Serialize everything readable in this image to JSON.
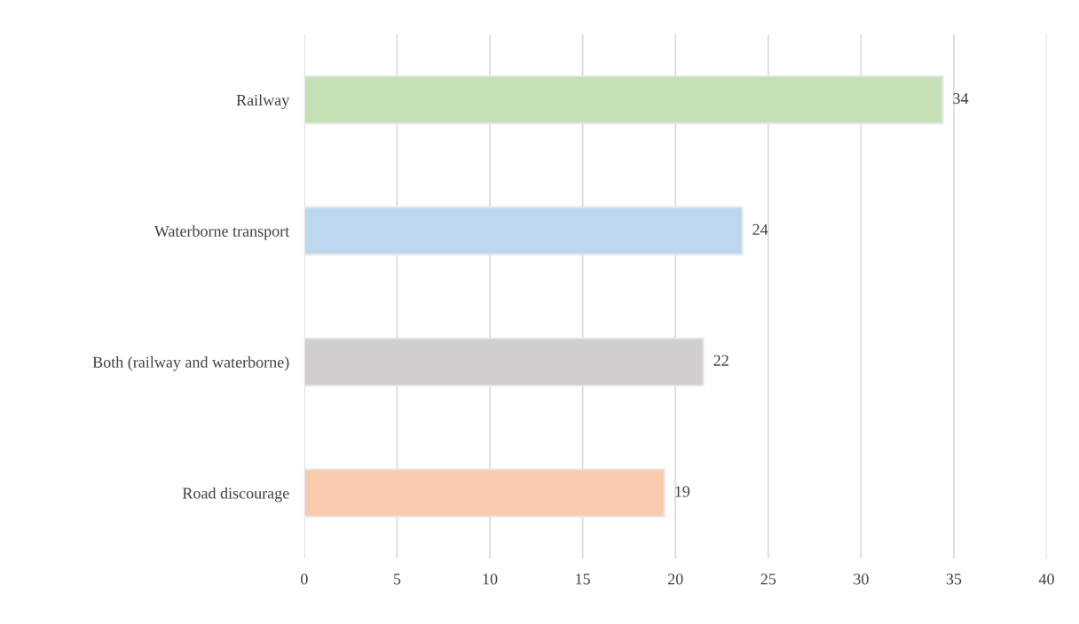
{
  "chart_data": {
    "type": "bar",
    "orientation": "horizontal",
    "categories": [
      "Railway",
      "Waterborne transport",
      "Both (railway and waterborne)",
      "Road discourage"
    ],
    "values": [
      34.4,
      23.6,
      21.5,
      19.4
    ],
    "value_labels": [
      "34",
      "24",
      "22",
      "19"
    ],
    "colors": [
      "#c5e0b4",
      "#bdd7ee",
      "#d0cece",
      "#f8cbad"
    ],
    "xlim": [
      0,
      40
    ],
    "xticks": [
      0,
      5,
      10,
      15,
      20,
      25,
      30,
      35,
      40
    ],
    "grid": "x",
    "legend": false
  }
}
